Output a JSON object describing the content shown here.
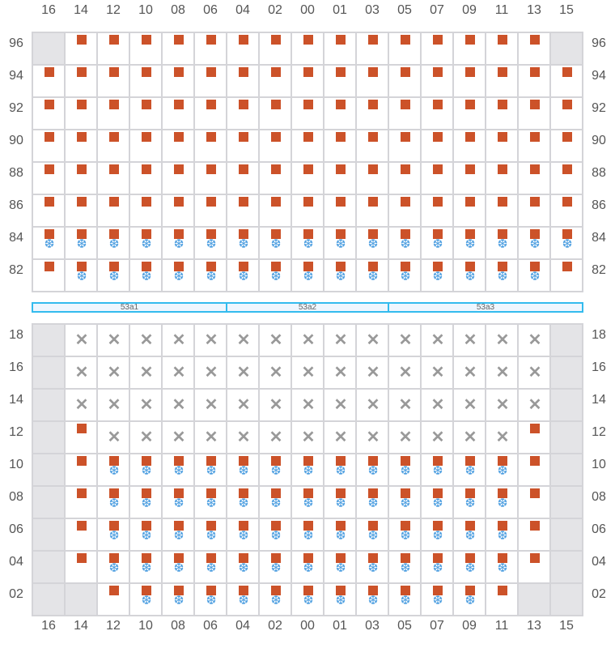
{
  "columns": [
    "16",
    "14",
    "12",
    "10",
    "08",
    "06",
    "04",
    "02",
    "00",
    "01",
    "03",
    "05",
    "07",
    "09",
    "11",
    "13",
    "15"
  ],
  "legend": {
    "g": "unavailable",
    "s": "occupied",
    "b": "occupied-reefer",
    "x": "blocked"
  },
  "colors": {
    "square": "#cc5229",
    "snowflake": "#4a9de0",
    "cross": "#999999",
    "unavailable": "#e4e4e7",
    "section_border": "#33bbee"
  },
  "top_grid": {
    "rows": [
      {
        "label": "96",
        "cells": "gsssssssssssssssg"
      },
      {
        "label": "94",
        "cells": "sssssssssssssssss"
      },
      {
        "label": "92",
        "cells": "sssssssssssssssss"
      },
      {
        "label": "90",
        "cells": "sssssssssssssssss"
      },
      {
        "label": "88",
        "cells": "sssssssssssssssss"
      },
      {
        "label": "86",
        "cells": "sssssssssssssssss"
      },
      {
        "label": "84",
        "cells": "bbbbbbbbbbbbbbbbb"
      },
      {
        "label": "82",
        "cells": "sbbbbbbbbbbbbbbbs"
      }
    ]
  },
  "sections": [
    {
      "label": "53a1"
    },
    {
      "label": "53a2"
    },
    {
      "label": "53a3"
    }
  ],
  "bottom_grid": {
    "rows": [
      {
        "label": "18",
        "cells": "gxxxxxxxxxxxxxxxg"
      },
      {
        "label": "16",
        "cells": "gxxxxxxxxxxxxxxxg"
      },
      {
        "label": "14",
        "cells": "gxxxxxxxxxxxxxxxg"
      },
      {
        "label": "12",
        "cells": "gsxxxxxxxxxxxxxsg"
      },
      {
        "label": "10",
        "cells": "gsbbbbbbbbbbbbbsg"
      },
      {
        "label": "08",
        "cells": "gsbbbbbbbbbbbbbsg"
      },
      {
        "label": "06",
        "cells": "gsbbbbbbbbbbbbbsg"
      },
      {
        "label": "04",
        "cells": "gsbbbbbbbbbbbbbsg"
      },
      {
        "label": "02",
        "cells": "ggsbbbbbbbbbbbsgg"
      }
    ]
  }
}
